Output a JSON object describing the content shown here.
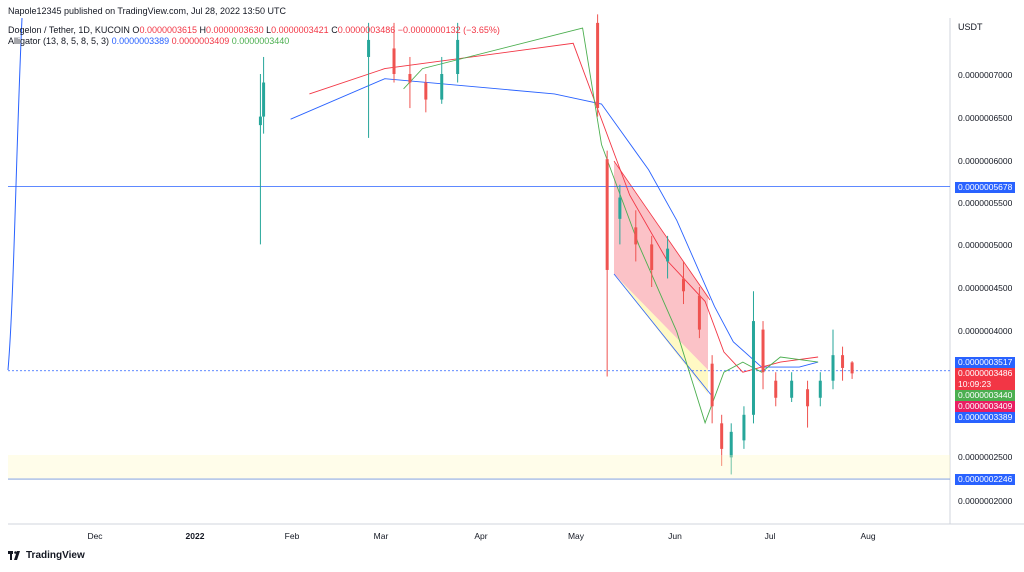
{
  "header": {
    "published": "Napole12345 published on TradingView.com, Jul 28, 2022 13:50 UTC",
    "symbol": "Dogelon / Tether, 1D, KUCOIN",
    "ohlc": {
      "open_label": "O",
      "open": "0.0000003615",
      "high_label": "H",
      "high": "0.0000003630",
      "low_label": "L",
      "low": "0.0000003421",
      "close_label": "C",
      "close": "0.0000003486",
      "change": "−0.0000000132 (−3.65%)"
    },
    "indicator": "Alligator (13, 8, 5, 8, 5, 3)",
    "indicator_values": [
      "0.0000003389",
      "0.0000003409",
      "0.0000003440"
    ]
  },
  "axis": {
    "currency": "USDT",
    "price_labels": [
      "0.0000007000",
      "0.0000006500",
      "0.0000006000",
      "0.0000005500",
      "0.0000005000",
      "0.0000004500",
      "0.0000004000",
      "0.0000002500",
      "0.0000002000"
    ],
    "time_labels": [
      "Dec",
      "2022",
      "Feb",
      "Mar",
      "Apr",
      "May",
      "Jun",
      "Jul",
      "Aug"
    ]
  },
  "price_tags": [
    {
      "value": "0.0000005678",
      "color": "#2962ff"
    },
    {
      "value": "0.0000003517",
      "color": "#2962ff"
    },
    {
      "value": "0.0000003486",
      "color": "#f23645"
    },
    {
      "value": "10:09:23",
      "color": "#f23645"
    },
    {
      "value": "0.0000003440",
      "color": "#4caf50"
    },
    {
      "value": "0.0000003409",
      "color": "#e91e63"
    },
    {
      "value": "0.0000003389",
      "color": "#2962ff"
    },
    {
      "value": "0.0000002246",
      "color": "#2962ff"
    }
  ],
  "brand": "TradingView",
  "chart_data": {
    "type": "candlestick",
    "symbol": "DOGELON/USDT",
    "interval": "1D",
    "ylim": [
      1.9e-07,
      7.8e-07
    ],
    "horizontal_levels": [
      5.678e-07,
      3.517e-07,
      2.246e-07
    ],
    "candles": [
      {
        "date": "2022-01-22",
        "o": 6.4e-07,
        "c": 6.5e-07,
        "h": 7e-07,
        "l": 5e-07
      },
      {
        "date": "2022-01-23",
        "o": 6.5e-07,
        "c": 6.9e-07,
        "h": 7.2e-07,
        "l": 6.3e-07
      },
      {
        "date": "2022-02-25",
        "o": 7.2e-07,
        "c": 7.4e-07,
        "h": 7.6e-07,
        "l": 6.25e-07
      },
      {
        "date": "2022-03-05",
        "o": 7.3e-07,
        "c": 7e-07,
        "h": 7.6e-07,
        "l": 6.9e-07
      },
      {
        "date": "2022-03-10",
        "o": 7e-07,
        "c": 6.9e-07,
        "h": 7.2e-07,
        "l": 6.6e-07
      },
      {
        "date": "2022-03-15",
        "o": 6.9e-07,
        "c": 6.7e-07,
        "h": 7e-07,
        "l": 6.55e-07
      },
      {
        "date": "2022-03-20",
        "o": 6.7e-07,
        "c": 7e-07,
        "h": 7.2e-07,
        "l": 6.65e-07
      },
      {
        "date": "2022-03-25",
        "o": 7e-07,
        "c": 7.4e-07,
        "h": 7.6e-07,
        "l": 6.9e-07
      },
      {
        "date": "2022-05-08",
        "o": 7.6e-07,
        "c": 6.6e-07,
        "h": 7.7e-07,
        "l": 6.5e-07
      },
      {
        "date": "2022-05-11",
        "o": 6e-07,
        "c": 4.7e-07,
        "h": 6.1e-07,
        "l": 3.45e-07
      },
      {
        "date": "2022-05-15",
        "o": 5.3e-07,
        "c": 5.55e-07,
        "h": 5.7e-07,
        "l": 5e-07
      },
      {
        "date": "2022-05-20",
        "o": 5.2e-07,
        "c": 5e-07,
        "h": 5.4e-07,
        "l": 4.8e-07
      },
      {
        "date": "2022-05-25",
        "o": 5e-07,
        "c": 4.7e-07,
        "h": 5.1e-07,
        "l": 4.5e-07
      },
      {
        "date": "2022-05-30",
        "o": 4.8e-07,
        "c": 4.95e-07,
        "h": 5.1e-07,
        "l": 4.6e-07
      },
      {
        "date": "2022-06-04",
        "o": 4.6e-07,
        "c": 4.45e-07,
        "h": 4.8e-07,
        "l": 4.3e-07
      },
      {
        "date": "2022-06-09",
        "o": 4.4e-07,
        "c": 4e-07,
        "h": 4.5e-07,
        "l": 3.9e-07
      },
      {
        "date": "2022-06-13",
        "o": 3.6e-07,
        "c": 3.1e-07,
        "h": 3.7e-07,
        "l": 2.9e-07
      },
      {
        "date": "2022-06-16",
        "o": 2.9e-07,
        "c": 2.6e-07,
        "h": 3e-07,
        "l": 2.4e-07
      },
      {
        "date": "2022-06-19",
        "o": 2.5e-07,
        "c": 2.8e-07,
        "h": 2.9e-07,
        "l": 2.3e-07
      },
      {
        "date": "2022-06-23",
        "o": 2.7e-07,
        "c": 3e-07,
        "h": 3.1e-07,
        "l": 2.6e-07
      },
      {
        "date": "2022-06-26",
        "o": 3e-07,
        "c": 4.1e-07,
        "h": 4.45e-07,
        "l": 2.9e-07
      },
      {
        "date": "2022-06-29",
        "o": 4e-07,
        "c": 3.5e-07,
        "h": 4.1e-07,
        "l": 3.3e-07
      },
      {
        "date": "2022-07-03",
        "o": 3.4e-07,
        "c": 3.2e-07,
        "h": 3.5e-07,
        "l": 3.1e-07
      },
      {
        "date": "2022-07-08",
        "o": 3.2e-07,
        "c": 3.4e-07,
        "h": 3.5e-07,
        "l": 3.15e-07
      },
      {
        "date": "2022-07-13",
        "o": 3.3e-07,
        "c": 3.1e-07,
        "h": 3.4e-07,
        "l": 2.85e-07
      },
      {
        "date": "2022-07-17",
        "o": 3.2e-07,
        "c": 3.4e-07,
        "h": 3.5e-07,
        "l": 3.1e-07
      },
      {
        "date": "2022-07-21",
        "o": 3.4e-07,
        "c": 3.7e-07,
        "h": 4e-07,
        "l": 3.3e-07
      },
      {
        "date": "2022-07-24",
        "o": 3.7e-07,
        "c": 3.55e-07,
        "h": 3.8e-07,
        "l": 3.4e-07
      },
      {
        "date": "2022-07-27",
        "o": 3.615e-07,
        "c": 3.486e-07,
        "h": 3.63e-07,
        "l": 3.421e-07
      }
    ],
    "alligator": {
      "jaw_color": "#2962ff",
      "teeth_color": "#f23645",
      "lips_color": "#4caf50",
      "jaw": [
        [
          0.3,
          0.2
        ],
        [
          0.4,
          0.12
        ],
        [
          0.58,
          0.15
        ],
        [
          0.63,
          0.17
        ],
        [
          0.68,
          0.3
        ],
        [
          0.71,
          0.4
        ],
        [
          0.75,
          0.57
        ],
        [
          0.77,
          0.64
        ],
        [
          0.8,
          0.69
        ],
        [
          0.82,
          0.69
        ],
        [
          0.84,
          0.69
        ],
        [
          0.86,
          0.68
        ]
      ],
      "teeth": [
        [
          0.32,
          0.15
        ],
        [
          0.4,
          0.1
        ],
        [
          0.6,
          0.05
        ],
        [
          0.62,
          0.15
        ],
        [
          0.66,
          0.35
        ],
        [
          0.7,
          0.48
        ],
        [
          0.74,
          0.56
        ],
        [
          0.76,
          0.66
        ],
        [
          0.78,
          0.7
        ],
        [
          0.8,
          0.69
        ],
        [
          0.82,
          0.68
        ],
        [
          0.86,
          0.67
        ]
      ],
      "lips": [
        [
          0.42,
          0.14
        ],
        [
          0.44,
          0.1
        ],
        [
          0.61,
          0.02
        ],
        [
          0.63,
          0.25
        ],
        [
          0.67,
          0.45
        ],
        [
          0.71,
          0.62
        ],
        [
          0.74,
          0.8
        ],
        [
          0.76,
          0.7
        ],
        [
          0.78,
          0.68
        ],
        [
          0.8,
          0.7
        ],
        [
          0.82,
          0.67
        ],
        [
          0.86,
          0.68
        ]
      ]
    }
  }
}
